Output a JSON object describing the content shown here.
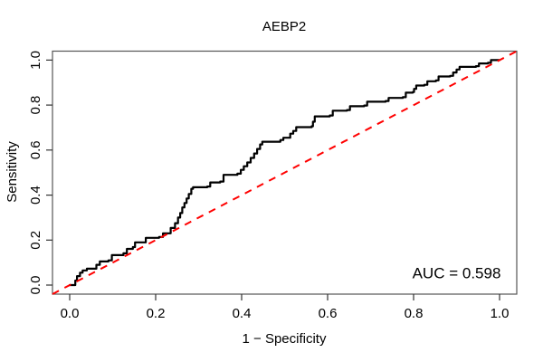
{
  "chart_data": {
    "type": "line",
    "subtype": "roc-curve",
    "title": "AEBP2",
    "xlabel": "1 − Specificity",
    "ylabel": "Sensitivity",
    "xlim": [
      0.0,
      1.0
    ],
    "ylim": [
      0.0,
      1.0
    ],
    "grid": false,
    "legend": "none",
    "x_ticks": [
      {
        "value": 0.0,
        "label": "0.0"
      },
      {
        "value": 0.2,
        "label": "0.2"
      },
      {
        "value": 0.4,
        "label": "0.4"
      },
      {
        "value": 0.6,
        "label": "0.6"
      },
      {
        "value": 0.8,
        "label": "0.8"
      },
      {
        "value": 1.0,
        "label": "1.0"
      }
    ],
    "y_ticks": [
      {
        "value": 0.0,
        "label": "0.0"
      },
      {
        "value": 0.2,
        "label": "0.2"
      },
      {
        "value": 0.4,
        "label": "0.4"
      },
      {
        "value": 0.6,
        "label": "0.6"
      },
      {
        "value": 0.8,
        "label": "0.8"
      },
      {
        "value": 1.0,
        "label": "1.0"
      }
    ],
    "series": [
      {
        "name": "ROC curve",
        "draw": "step",
        "color": "#000000",
        "line_width": 2.2,
        "points": [
          [
            0.0,
            0.0
          ],
          [
            0.01,
            0.0
          ],
          [
            0.013,
            0.02
          ],
          [
            0.017,
            0.04
          ],
          [
            0.024,
            0.055
          ],
          [
            0.03,
            0.065
          ],
          [
            0.04,
            0.073
          ],
          [
            0.055,
            0.073
          ],
          [
            0.062,
            0.09
          ],
          [
            0.07,
            0.105
          ],
          [
            0.09,
            0.11
          ],
          [
            0.098,
            0.133
          ],
          [
            0.125,
            0.141
          ],
          [
            0.133,
            0.161
          ],
          [
            0.147,
            0.169
          ],
          [
            0.152,
            0.19
          ],
          [
            0.177,
            0.21
          ],
          [
            0.208,
            0.214
          ],
          [
            0.217,
            0.23
          ],
          [
            0.235,
            0.254
          ],
          [
            0.245,
            0.275
          ],
          [
            0.252,
            0.3
          ],
          [
            0.257,
            0.32
          ],
          [
            0.262,
            0.345
          ],
          [
            0.267,
            0.365
          ],
          [
            0.272,
            0.385
          ],
          [
            0.277,
            0.405
          ],
          [
            0.283,
            0.428
          ],
          [
            0.287,
            0.435
          ],
          [
            0.32,
            0.438
          ],
          [
            0.327,
            0.456
          ],
          [
            0.35,
            0.46
          ],
          [
            0.358,
            0.49
          ],
          [
            0.39,
            0.495
          ],
          [
            0.398,
            0.512
          ],
          [
            0.405,
            0.528
          ],
          [
            0.413,
            0.545
          ],
          [
            0.421,
            0.565
          ],
          [
            0.429,
            0.585
          ],
          [
            0.436,
            0.605
          ],
          [
            0.443,
            0.625
          ],
          [
            0.448,
            0.637
          ],
          [
            0.49,
            0.645
          ],
          [
            0.497,
            0.655
          ],
          [
            0.513,
            0.673
          ],
          [
            0.52,
            0.685
          ],
          [
            0.527,
            0.702
          ],
          [
            0.563,
            0.706
          ],
          [
            0.566,
            0.726
          ],
          [
            0.57,
            0.75
          ],
          [
            0.605,
            0.754
          ],
          [
            0.612,
            0.775
          ],
          [
            0.645,
            0.778
          ],
          [
            0.652,
            0.795
          ],
          [
            0.685,
            0.798
          ],
          [
            0.692,
            0.815
          ],
          [
            0.735,
            0.818
          ],
          [
            0.742,
            0.832
          ],
          [
            0.775,
            0.835
          ],
          [
            0.782,
            0.855
          ],
          [
            0.798,
            0.858
          ],
          [
            0.801,
            0.872
          ],
          [
            0.806,
            0.887
          ],
          [
            0.825,
            0.89
          ],
          [
            0.832,
            0.906
          ],
          [
            0.852,
            0.91
          ],
          [
            0.858,
            0.927
          ],
          [
            0.885,
            0.93
          ],
          [
            0.892,
            0.945
          ],
          [
            0.9,
            0.958
          ],
          [
            0.907,
            0.97
          ],
          [
            0.945,
            0.973
          ],
          [
            0.952,
            0.985
          ],
          [
            0.973,
            0.988
          ],
          [
            0.98,
            1.0
          ],
          [
            1.0,
            1.0
          ]
        ]
      },
      {
        "name": "chance diagonal",
        "draw": "straight",
        "style": "dashed",
        "color": "#FF0000",
        "line_width": 2,
        "points": [
          [
            0.0,
            0.0
          ],
          [
            1.0,
            1.0
          ]
        ]
      }
    ],
    "annotations": [
      {
        "text": "AUC = 0.598",
        "x": 0.9,
        "y": 0.03,
        "color": "#000000"
      }
    ]
  }
}
